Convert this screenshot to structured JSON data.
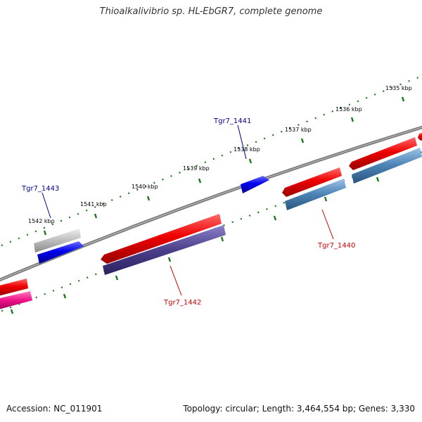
{
  "title": "Thioalkalivibrio sp. HL-EbGR7, complete genome",
  "accession_label": "Accession: NC_011901",
  "summary_label": "Topology: circular; Length: 3,464,554 bp; Genes: 3,330",
  "scale_labels": [
    "1535 kbp",
    "1536 kbp",
    "1537 kbp",
    "1538 kbp",
    "1539 kbp",
    "1540 kbp",
    "1541 kbp",
    "1542 kbp"
  ],
  "gene_labels": [
    {
      "name": "Tgr7_1441",
      "color": "#00008b"
    },
    {
      "name": "Tgr7_1443",
      "color": "#00008b"
    },
    {
      "name": "Tgr7_1440",
      "color": "#cc0000"
    },
    {
      "name": "Tgr7_1442",
      "color": "#cc0000"
    }
  ],
  "colors": {
    "backbone": "#7a7a7a",
    "tick": "#1a7a1a",
    "gene_red": "#ee0000",
    "gene_blue": "#0000ee",
    "gene_grey": "#bdbdbd",
    "gene_steel": "#4a82b4",
    "gene_indigo": "#4b3f8a",
    "gene_pink": "#ee1288"
  }
}
